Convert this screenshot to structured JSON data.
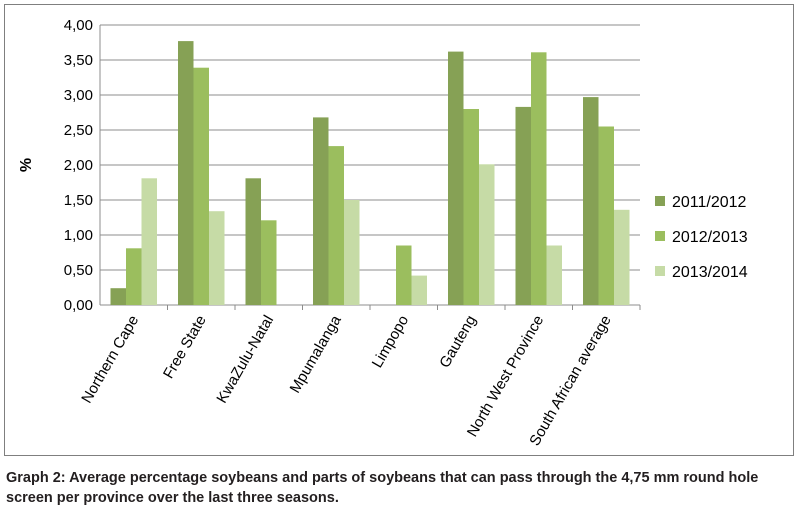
{
  "caption": "Graph 2: Average percentage soybeans and parts of soybeans that can pass through the 4,75 mm round hole screen per province over the last three seasons.",
  "chart_data": {
    "type": "bar",
    "title": "",
    "xlabel": "",
    "ylabel": "%",
    "ylim": [
      0,
      4
    ],
    "y_ticks": [
      "0,00",
      "0,50",
      "1,00",
      "1,50",
      "2,00",
      "2,50",
      "3,00",
      "3,50",
      "4,00"
    ],
    "y_tick_values": [
      0,
      0.5,
      1,
      1.5,
      2,
      2.5,
      3,
      3.5,
      4
    ],
    "grid": true,
    "legend_position": "right",
    "categories": [
      "Northern Cape",
      "Free State",
      "KwaZulu-Natal",
      "Mpumalanga",
      "Limpopo",
      "Gauteng",
      "North West Province",
      "South African average"
    ],
    "series": [
      {
        "name": "2011/2012",
        "color": "#86a155",
        "values": [
          0.24,
          3.77,
          1.81,
          2.68,
          0,
          3.62,
          2.83,
          2.97
        ]
      },
      {
        "name": "2012/2013",
        "color": "#9bbe5e",
        "values": [
          0.81,
          3.39,
          1.21,
          2.27,
          0.85,
          2.8,
          3.61,
          2.55
        ]
      },
      {
        "name": "2013/2014",
        "color": "#c6dba6",
        "values": [
          1.81,
          1.34,
          0,
          1.5,
          0.42,
          2.01,
          0.85,
          1.36
        ]
      }
    ]
  }
}
